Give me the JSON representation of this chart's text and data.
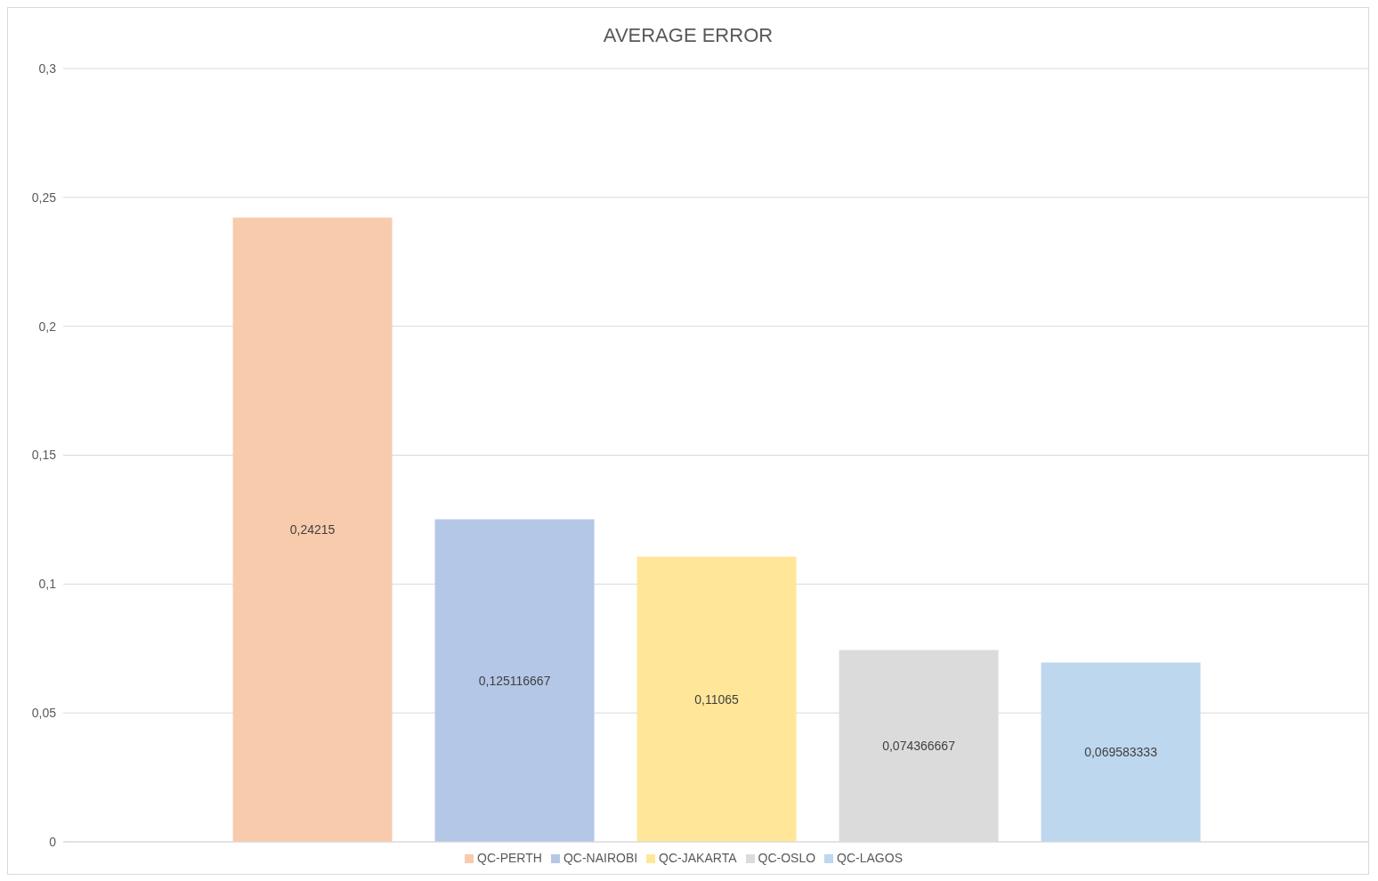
{
  "chart_data": {
    "type": "bar",
    "title": "AVERAGE ERROR",
    "categories": [
      null
    ],
    "series": [
      {
        "name": "QC-PERTH",
        "color": "#f8cbad",
        "values": [
          0.24215
        ],
        "value_labels": [
          "0,24215"
        ]
      },
      {
        "name": "QC-NAIROBI",
        "color": "#b4c7e7",
        "values": [
          0.125116667
        ],
        "value_labels": [
          "0,125116667"
        ]
      },
      {
        "name": "QC-JAKARTA",
        "color": "#ffe699",
        "values": [
          0.11065
        ],
        "value_labels": [
          "0,11065"
        ]
      },
      {
        "name": "QC-OSLO",
        "color": "#dbdbdb",
        "values": [
          0.074366667
        ],
        "value_labels": [
          "0,074366667"
        ]
      },
      {
        "name": "QC-LAGOS",
        "color": "#bdd7ee",
        "values": [
          0.069583333
        ],
        "value_labels": [
          "0,069583333"
        ]
      }
    ],
    "ylim": [
      0,
      0.3
    ],
    "yticks": [
      {
        "value": 0,
        "label": "0"
      },
      {
        "value": 0.05,
        "label": "0,05"
      },
      {
        "value": 0.1,
        "label": "0,1"
      },
      {
        "value": 0.15,
        "label": "0,15"
      },
      {
        "value": 0.2,
        "label": "0,2"
      },
      {
        "value": 0.25,
        "label": "0,25"
      },
      {
        "value": 0.3,
        "label": "0,3"
      }
    ],
    "grid": "y",
    "legend": "bottom"
  }
}
